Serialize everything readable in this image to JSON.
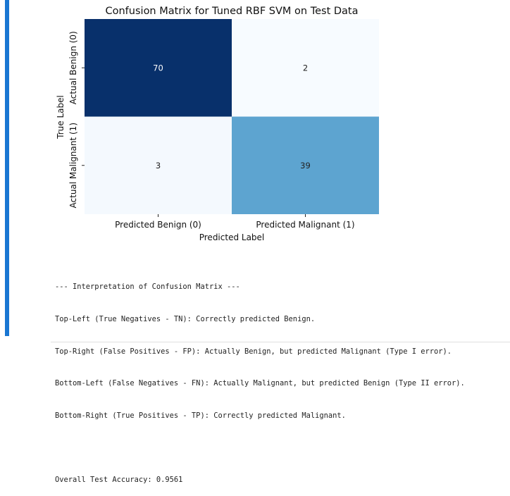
{
  "chart_data": {
    "type": "heatmap",
    "title": "Confusion Matrix for Tuned RBF SVM on Test Data",
    "xlabel": "Predicted Label",
    "ylabel": "True Label",
    "x_tick_labels": [
      "Predicted Benign (0)",
      "Predicted Malignant (1)"
    ],
    "y_tick_labels": [
      "Actual Benign (0)",
      "Actual Malignant (1)"
    ],
    "values": [
      [
        70,
        2
      ],
      [
        3,
        39
      ]
    ],
    "colormap": "Blues",
    "color_low": "#f7fbff",
    "color_high": "#08306b",
    "annotations": true,
    "colorbar": false
  },
  "output": {
    "lines": [
      "--- Interpretation of Confusion Matrix ---",
      "Top-Left (True Negatives - TN): Correctly predicted Benign.",
      "Top-Right (False Positives - FP): Actually Benign, but predicted Malignant (Type I error).",
      "Bottom-Left (False Negatives - FN): Actually Malignant, but predicted Benign (Type II error).",
      "Bottom-Right (True Positives - TP): Correctly predicted Malignant.",
      "",
      "Overall Test Accuracy: 0.9561"
    ]
  },
  "colors": {
    "accent_bar": "#1976d2"
  }
}
